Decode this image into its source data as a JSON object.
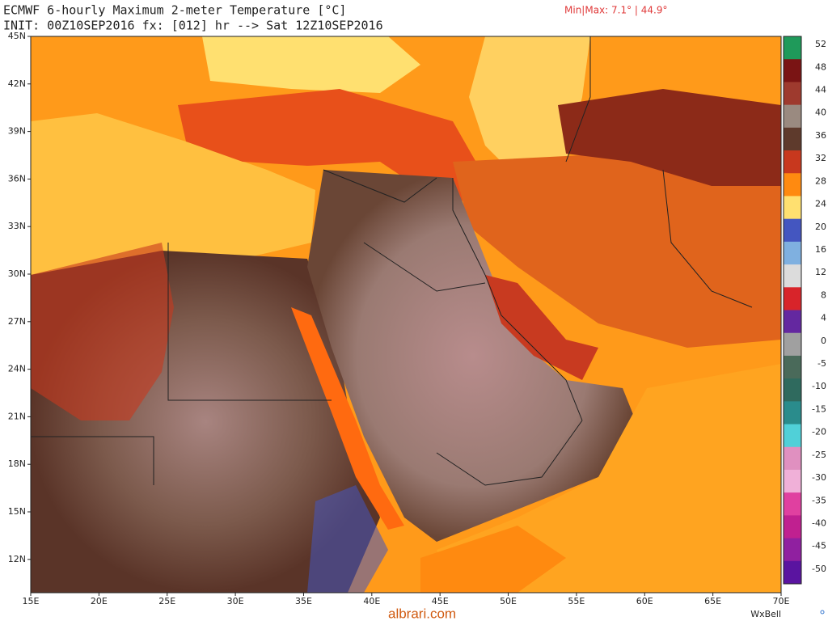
{
  "header": {
    "title": "ECMWF 6-hourly Maximum 2-meter Temperature [°C]",
    "init": "INIT: 00Z10SEP2016 fx: [012] hr --> Sat 12Z10SEP2016",
    "minmax": "Min|Max: 7.1° | 44.9°"
  },
  "map": {
    "lon_ticks": [
      {
        "value": 15,
        "label": "15E"
      },
      {
        "value": 20,
        "label": "20E"
      },
      {
        "value": 25,
        "label": "25E"
      },
      {
        "value": 30,
        "label": "30E"
      },
      {
        "value": 35,
        "label": "35E"
      },
      {
        "value": 40,
        "label": "40E"
      },
      {
        "value": 45,
        "label": "45E"
      },
      {
        "value": 50,
        "label": "50E"
      },
      {
        "value": 55,
        "label": "55E"
      },
      {
        "value": 60,
        "label": "60E"
      },
      {
        "value": 65,
        "label": "65E"
      },
      {
        "value": 70,
        "label": "70E"
      }
    ],
    "lat_ticks": [
      {
        "value": 45,
        "label": "45N"
      },
      {
        "value": 42,
        "label": "42N"
      },
      {
        "value": 39,
        "label": "39N"
      },
      {
        "value": 36,
        "label": "36N"
      },
      {
        "value": 33,
        "label": "33N"
      },
      {
        "value": 30,
        "label": "30N"
      },
      {
        "value": 27,
        "label": "27N"
      },
      {
        "value": 24,
        "label": "24N"
      },
      {
        "value": 21,
        "label": "21N"
      },
      {
        "value": 18,
        "label": "18N"
      },
      {
        "value": 15,
        "label": "15N"
      },
      {
        "value": 12,
        "label": "12N"
      }
    ]
  },
  "colorbar": {
    "ticks": [
      52,
      48,
      44,
      40,
      36,
      32,
      28,
      24,
      20,
      16,
      12,
      8,
      4,
      0,
      -5,
      -10,
      -15,
      -20,
      -25,
      -30,
      -35,
      -40,
      -45,
      -50
    ],
    "colors": [
      "#1f9a5a",
      "#7a1414",
      "#9e3a2e",
      "#9a8a80",
      "#5e3a2c",
      "#c8381e",
      "#ff8a10",
      "#ffe070",
      "#4456c0",
      "#7fb0e0",
      "#dcdcdc",
      "#d8242a",
      "#6428a0",
      "#a0a0a0",
      "#4a6a5a",
      "#2f6a5e",
      "#2a8c8c",
      "#50d0d8",
      "#e090c0",
      "#f0b0d8",
      "#e040a0",
      "#c02090",
      "#9020a0",
      "#5a14a0"
    ]
  },
  "footer": {
    "brand": "WxBell",
    "watermark": "albrari.com"
  }
}
